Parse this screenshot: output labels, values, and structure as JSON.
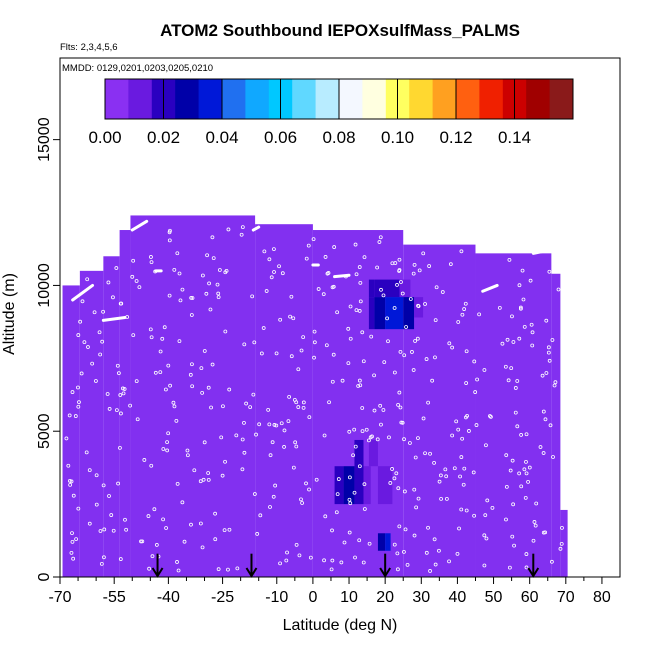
{
  "chart_data": {
    "type": "heatmap",
    "title": "ATOM2 Southbound IEPOXsulfMass_PALMS",
    "flights_note": "Flts: 2,3,4,5,6",
    "dates_note": "MMDD: 0129,0201,0203,0205,0210",
    "xlabel": "Latitude (deg N)",
    "ylabel": "Altitude (m)",
    "xlim": [
      -70,
      85
    ],
    "ylim": [
      0,
      17800
    ],
    "x_ticks": [
      -70,
      -55,
      -40,
      -25,
      -10,
      0,
      10,
      20,
      30,
      40,
      50,
      60,
      70,
      80
    ],
    "x_tick_labels": [
      "-70",
      "-55",
      "-40",
      "-25",
      "-10",
      "0",
      "10",
      "20",
      "30",
      "40",
      "50",
      "60",
      "70",
      "80"
    ],
    "x_minor_ticks": [
      -65,
      -60,
      -50,
      -45,
      -35,
      -30,
      -20,
      -15,
      -5,
      5,
      15,
      25,
      35,
      45,
      55,
      65,
      75
    ],
    "y_ticks": [
      0,
      5000,
      10000,
      15000
    ],
    "y_tick_labels": [
      "0",
      "5000",
      "10000",
      "15000"
    ],
    "colorbar": {
      "min": 0.0,
      "max": 0.16,
      "tick_values": [
        0.0,
        0.02,
        0.04,
        0.06,
        0.08,
        0.1,
        0.12,
        0.14
      ],
      "tick_labels": [
        "0.00",
        "0.02",
        "0.04",
        "0.06",
        "0.08",
        "0.10",
        "0.12",
        "0.14"
      ],
      "colors": [
        "#8a30f2",
        "#6a1ae0",
        "#2a00c0",
        "#0000a8",
        "#0018d8",
        "#2070f0",
        "#10a8ff",
        "#00c8ff",
        "#60d8ff",
        "#b8ecff",
        "#f4f8ff",
        "#ffffe0",
        "#ffff60",
        "#ffd830",
        "#ffa020",
        "#ff6010",
        "#f02000",
        "#cc0000",
        "#a00000",
        "#8a1a1a"
      ]
    },
    "background_value": 0.003,
    "background_color": "#8230f0",
    "coverage_columns": [
      {
        "lat0": -69.3,
        "lat1": -64.5,
        "alt_top": 10000
      },
      {
        "lat0": -64.5,
        "lat1": -58.0,
        "alt_top": 10500
      },
      {
        "lat0": -58.0,
        "lat1": -53.5,
        "alt_top": 11000
      },
      {
        "lat0": -53.5,
        "lat1": -50.5,
        "alt_top": 11900
      },
      {
        "lat0": -50.5,
        "lat1": -16.0,
        "alt_top": 12400
      },
      {
        "lat0": -16.0,
        "lat1": 0.0,
        "alt_top": 12100
      },
      {
        "lat0": 0.0,
        "lat1": 25.0,
        "alt_top": 11900
      },
      {
        "lat0": 25.0,
        "lat1": 45.0,
        "alt_top": 11400
      },
      {
        "lat0": 45.0,
        "lat1": 66.0,
        "alt_top": 11100
      },
      {
        "lat0": 66.0,
        "lat1": 68.5,
        "alt_top": 10400
      },
      {
        "lat0": 68.5,
        "lat1": 70.5,
        "alt_top": 2300
      }
    ],
    "coverage_bottom_alt": 0,
    "highlight_cells": [
      {
        "lat0": 15.5,
        "lat1": 17.0,
        "alt0": 9600,
        "alt1": 10200,
        "value": 0.016
      },
      {
        "lat0": 17.0,
        "lat1": 24.0,
        "alt0": 9600,
        "alt1": 10200,
        "value": 0.022
      },
      {
        "lat0": 24.0,
        "lat1": 27.0,
        "alt0": 9600,
        "alt1": 10200,
        "value": 0.014
      },
      {
        "lat0": 15.5,
        "lat1": 17.0,
        "alt0": 8500,
        "alt1": 9600,
        "value": 0.017
      },
      {
        "lat0": 17.0,
        "lat1": 20.0,
        "alt0": 8500,
        "alt1": 9600,
        "value": 0.028
      },
      {
        "lat0": 20.0,
        "lat1": 25.0,
        "alt0": 8500,
        "alt1": 9600,
        "value": 0.036
      },
      {
        "lat0": 25.0,
        "lat1": 28.0,
        "alt0": 8500,
        "alt1": 9600,
        "value": 0.025
      },
      {
        "lat0": 28.0,
        "lat1": 30.5,
        "alt0": 8900,
        "alt1": 9600,
        "value": 0.012
      },
      {
        "lat0": 15.5,
        "lat1": 18.0,
        "alt0": 3800,
        "alt1": 4700,
        "value": 0.012
      },
      {
        "lat0": 6.0,
        "lat1": 8.5,
        "alt0": 2500,
        "alt1": 3800,
        "value": 0.018
      },
      {
        "lat0": 8.5,
        "lat1": 11.5,
        "alt0": 2500,
        "alt1": 3800,
        "value": 0.025
      },
      {
        "lat0": 11.5,
        "lat1": 14.0,
        "alt0": 2500,
        "alt1": 4700,
        "value": 0.02
      },
      {
        "lat0": 14.0,
        "lat1": 16.0,
        "alt0": 2500,
        "alt1": 3800,
        "value": 0.013
      },
      {
        "lat0": 18.0,
        "lat1": 22.0,
        "alt0": 2500,
        "alt1": 3800,
        "value": 0.012
      },
      {
        "lat0": 18.0,
        "lat1": 20.0,
        "alt0": 900,
        "alt1": 1500,
        "value": 0.026
      },
      {
        "lat0": 20.0,
        "lat1": 21.5,
        "alt0": 900,
        "alt1": 1500,
        "value": 0.035
      }
    ],
    "flight_track_segments": [
      {
        "lat0": -66.5,
        "alt0": 9500,
        "lat1": -61.0,
        "alt1": 10000
      },
      {
        "lat0": -58.0,
        "alt0": 8800,
        "lat1": -52.0,
        "alt1": 8900
      },
      {
        "lat0": -50.0,
        "alt0": 11900,
        "lat1": -46.0,
        "alt1": 12200
      },
      {
        "lat0": -43.5,
        "alt0": 10500,
        "lat1": -42.0,
        "alt1": 10500
      },
      {
        "lat0": -16.5,
        "alt0": 11900,
        "lat1": -15.0,
        "alt1": 12000
      },
      {
        "lat0": 0.0,
        "alt0": 10700,
        "lat1": 1.5,
        "alt1": 10700
      },
      {
        "lat0": 6.0,
        "alt0": 10300,
        "lat1": 10.0,
        "alt1": 10350
      },
      {
        "lat0": 47.0,
        "alt0": 9800,
        "lat1": 51.0,
        "alt1": 10000
      },
      {
        "lat0": 61.0,
        "alt0": 11100,
        "lat1": 65.0,
        "alt1": 11200
      }
    ],
    "sample_points_random_count": 520,
    "arrows_at_latitude": [
      -43.0,
      -17.0,
      20.0,
      61.0
    ],
    "arrow_top_alt": 800
  }
}
